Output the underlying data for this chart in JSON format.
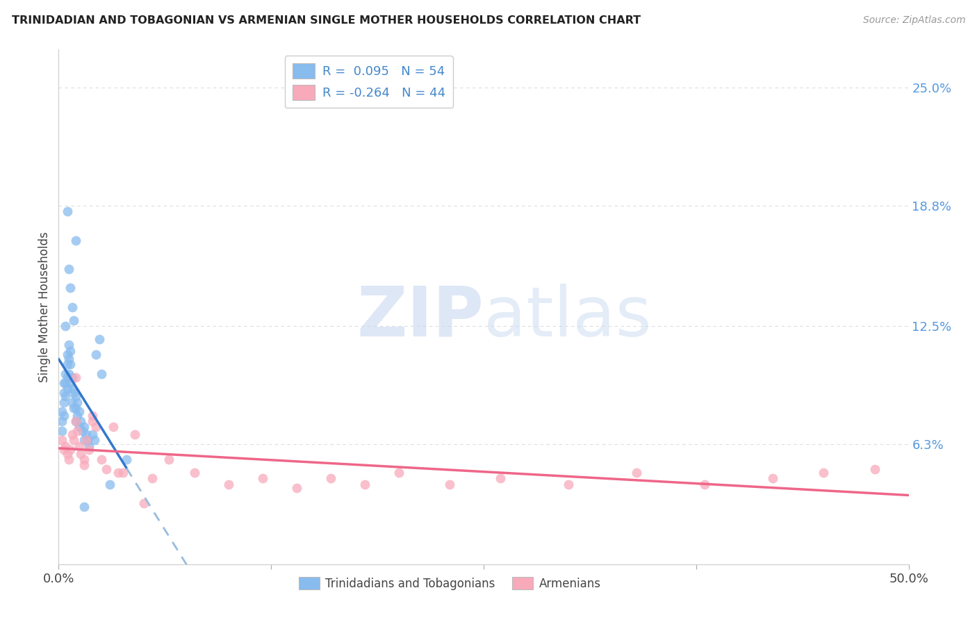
{
  "title": "TRINIDADIAN AND TOBAGONIAN VS ARMENIAN SINGLE MOTHER HOUSEHOLDS CORRELATION CHART",
  "source": "Source: ZipAtlas.com",
  "ylabel": "Single Mother Households",
  "ytick_labels": [
    "25.0%",
    "18.8%",
    "12.5%",
    "6.3%"
  ],
  "ytick_values": [
    0.25,
    0.188,
    0.125,
    0.063
  ],
  "xlim": [
    0.0,
    0.5
  ],
  "ylim": [
    0.0,
    0.27
  ],
  "legend1_r": "0.095",
  "legend1_n": "54",
  "legend2_r": "-0.264",
  "legend2_n": "44",
  "blue_color": "#88bbee",
  "pink_color": "#f8aabb",
  "blue_line_color": "#3377cc",
  "pink_line_color": "#ee6688",
  "blue_dashed_color": "#99bbdd",
  "background_color": "#ffffff",
  "watermark_zip": "ZIP",
  "watermark_atlas": "atlas",
  "blue_scatter_x": [
    0.002,
    0.002,
    0.002,
    0.003,
    0.003,
    0.003,
    0.003,
    0.004,
    0.004,
    0.004,
    0.005,
    0.005,
    0.005,
    0.005,
    0.006,
    0.006,
    0.006,
    0.007,
    0.007,
    0.007,
    0.008,
    0.008,
    0.008,
    0.009,
    0.009,
    0.01,
    0.01,
    0.01,
    0.011,
    0.011,
    0.012,
    0.012,
    0.013,
    0.014,
    0.015,
    0.015,
    0.016,
    0.017,
    0.018,
    0.02,
    0.021,
    0.022,
    0.024,
    0.025,
    0.03,
    0.004,
    0.005,
    0.006,
    0.007,
    0.008,
    0.009,
    0.01,
    0.04,
    0.015
  ],
  "blue_scatter_y": [
    0.08,
    0.075,
    0.07,
    0.095,
    0.09,
    0.085,
    0.078,
    0.1,
    0.095,
    0.088,
    0.11,
    0.105,
    0.098,
    0.092,
    0.115,
    0.108,
    0.1,
    0.112,
    0.105,
    0.095,
    0.098,
    0.092,
    0.085,
    0.09,
    0.082,
    0.088,
    0.082,
    0.075,
    0.085,
    0.078,
    0.08,
    0.072,
    0.075,
    0.07,
    0.072,
    0.065,
    0.068,
    0.065,
    0.062,
    0.068,
    0.065,
    0.11,
    0.118,
    0.1,
    0.042,
    0.125,
    0.185,
    0.155,
    0.145,
    0.135,
    0.128,
    0.17,
    0.055,
    0.03
  ],
  "pink_scatter_x": [
    0.002,
    0.003,
    0.004,
    0.005,
    0.006,
    0.007,
    0.008,
    0.009,
    0.01,
    0.011,
    0.012,
    0.013,
    0.015,
    0.016,
    0.018,
    0.02,
    0.022,
    0.025,
    0.028,
    0.032,
    0.038,
    0.045,
    0.055,
    0.065,
    0.08,
    0.1,
    0.12,
    0.14,
    0.16,
    0.18,
    0.2,
    0.23,
    0.26,
    0.3,
    0.34,
    0.38,
    0.42,
    0.45,
    0.48,
    0.01,
    0.015,
    0.02,
    0.035,
    0.05
  ],
  "pink_scatter_y": [
    0.065,
    0.06,
    0.062,
    0.058,
    0.055,
    0.06,
    0.068,
    0.065,
    0.075,
    0.07,
    0.062,
    0.058,
    0.055,
    0.065,
    0.06,
    0.078,
    0.072,
    0.055,
    0.05,
    0.072,
    0.048,
    0.068,
    0.045,
    0.055,
    0.048,
    0.042,
    0.045,
    0.04,
    0.045,
    0.042,
    0.048,
    0.042,
    0.045,
    0.042,
    0.048,
    0.042,
    0.045,
    0.048,
    0.05,
    0.098,
    0.052,
    0.075,
    0.048,
    0.032
  ]
}
